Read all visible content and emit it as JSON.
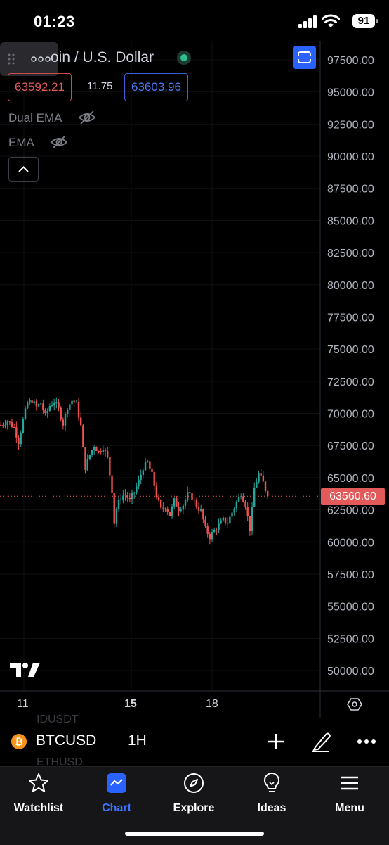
{
  "status_bar": {
    "time": "01:23",
    "battery": "91"
  },
  "chart": {
    "title": "Bitcoin / U.S. Dollar",
    "title_visible": "oin / U.S. Dollar",
    "sell_price": "63592.21",
    "spread": "11.75",
    "buy_price": "63603.96",
    "indicators": [
      {
        "label": "Dual EMA",
        "icon": "eye-off-icon"
      },
      {
        "label": "EMA",
        "icon": "eye-off-icon"
      }
    ],
    "current_price_label": "63560.60",
    "price_axis_ticks": [
      "97500.00",
      "95000.00",
      "92500.00",
      "90000.00",
      "87500.00",
      "85000.00",
      "82500.00",
      "80000.00",
      "77500.00",
      "75000.00",
      "72500.00",
      "70000.00",
      "67500.00",
      "65000.00",
      "62500.00",
      "60000.00",
      "57500.00",
      "55000.00",
      "52500.00",
      "50000.00"
    ],
    "date_axis_ticks": [
      "11",
      "15",
      "18"
    ],
    "colors": {
      "up": "#26a69a",
      "down": "#ef5350",
      "last_price": "#e25a5a",
      "accent": "#2962ff"
    }
  },
  "chart_data": {
    "type": "candlestick",
    "title": "Bitcoin / U.S. Dollar",
    "symbol": "BTCUSD",
    "interval": "1H",
    "x_ticks": [
      "11",
      "15",
      "18"
    ],
    "ylim": [
      48750,
      98750
    ],
    "last_price": 63560.6,
    "close_path": [
      [
        0,
        69100
      ],
      [
        3,
        69400
      ],
      [
        6,
        68900
      ],
      [
        8,
        67800
      ],
      [
        10,
        69500
      ],
      [
        12,
        70800
      ],
      [
        14,
        71000
      ],
      [
        16,
        70500
      ],
      [
        18,
        70800
      ],
      [
        20,
        69800
      ],
      [
        22,
        70600
      ],
      [
        24,
        70900
      ],
      [
        26,
        70300
      ],
      [
        28,
        69200
      ],
      [
        30,
        70500
      ],
      [
        32,
        71000
      ],
      [
        34,
        70700
      ],
      [
        36,
        69000
      ],
      [
        37,
        67200
      ],
      [
        38,
        65800
      ],
      [
        40,
        66800
      ],
      [
        42,
        67500
      ],
      [
        44,
        67000
      ],
      [
        46,
        67400
      ],
      [
        48,
        66500
      ],
      [
        50,
        64000
      ],
      [
        51,
        61500
      ],
      [
        52,
        62600
      ],
      [
        54,
        63500
      ],
      [
        56,
        63700
      ],
      [
        58,
        63200
      ],
      [
        60,
        63900
      ],
      [
        62,
        64700
      ],
      [
        64,
        65800
      ],
      [
        66,
        66200
      ],
      [
        68,
        65200
      ],
      [
        70,
        63600
      ],
      [
        72,
        62500
      ],
      [
        74,
        62800
      ],
      [
        76,
        62100
      ],
      [
        78,
        63200
      ],
      [
        80,
        62600
      ],
      [
        82,
        62900
      ],
      [
        84,
        63700
      ],
      [
        86,
        63500
      ],
      [
        88,
        62800
      ],
      [
        90,
        62400
      ],
      [
        92,
        61000
      ],
      [
        94,
        60400
      ],
      [
        96,
        60900
      ],
      [
        98,
        61300
      ],
      [
        100,
        61700
      ],
      [
        102,
        61500
      ],
      [
        104,
        62300
      ],
      [
        106,
        63100
      ],
      [
        108,
        63800
      ],
      [
        110,
        62900
      ],
      [
        112,
        61000
      ],
      [
        113,
        62500
      ],
      [
        114,
        64200
      ],
      [
        116,
        65300
      ],
      [
        118,
        64600
      ],
      [
        120,
        63560
      ]
    ]
  },
  "symbol_bar": {
    "symbol": "BTCUSD",
    "interval": "1H",
    "ghost_above": "IDUSDT",
    "ghost_below": "ETHUSD"
  },
  "tabs": [
    {
      "label": "Watchlist",
      "icon": "star-icon",
      "active": false
    },
    {
      "label": "Chart",
      "icon": "chart-icon",
      "active": true
    },
    {
      "label": "Explore",
      "icon": "compass-icon",
      "active": false
    },
    {
      "label": "Ideas",
      "icon": "lightbulb-icon",
      "active": false
    },
    {
      "label": "Menu",
      "icon": "hamburger-icon",
      "active": false
    }
  ]
}
